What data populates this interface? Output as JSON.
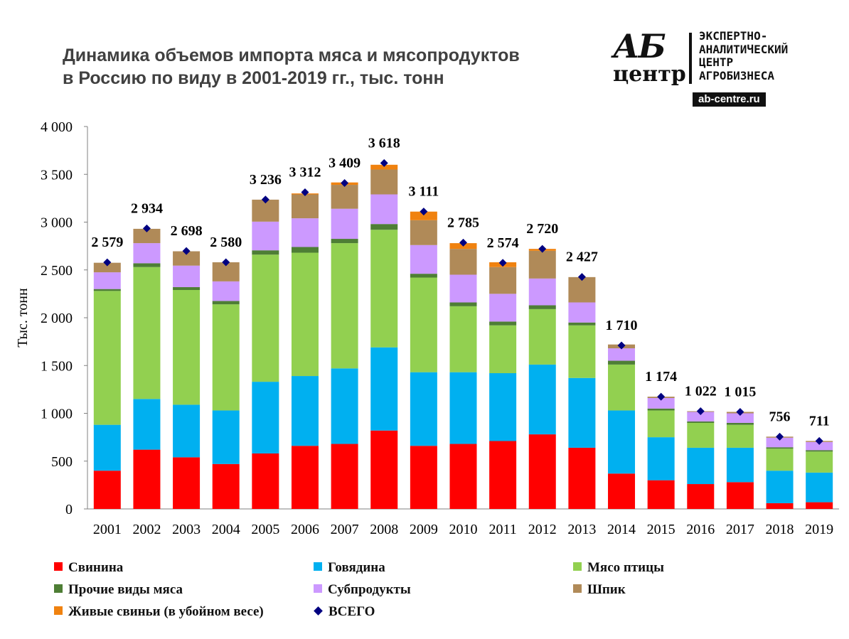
{
  "title_lines": [
    "Динамика объемов импорта мяса и мясопродуктов",
    "в Россию по виду в 2001-2019 гг., тыс. тонн"
  ],
  "logo": {
    "mark_line1": "АБ",
    "mark_line2": "центр",
    "text_lines": [
      "ЭКСПЕРТНО-",
      "АНАЛИТИЧЕСКИЙ",
      "ЦЕНТР",
      "АГРОБИЗНЕСА"
    ],
    "url": "ab-centre.ru"
  },
  "chart_data": {
    "type": "bar",
    "stacked": true,
    "ylabel": "Тыс.  тонн",
    "xlabel": "",
    "ylim": [
      0,
      4000
    ],
    "y_ticks": [
      0,
      500,
      1000,
      1500,
      2000,
      2500,
      3000,
      3500,
      4000
    ],
    "y_tick_labels": [
      "0",
      "500",
      "1 000",
      "1 500",
      "2 000",
      "2 500",
      "3 000",
      "3 500",
      "4 000"
    ],
    "categories": [
      "2001",
      "2002",
      "2003",
      "2004",
      "2005",
      "2006",
      "2007",
      "2008",
      "2009",
      "2010",
      "2011",
      "2012",
      "2013",
      "2014",
      "2015",
      "2016",
      "2017",
      "2018",
      "2019"
    ],
    "series": [
      {
        "name": "Свинина",
        "color": "#ff0000",
        "values": [
          400,
          620,
          540,
          470,
          580,
          660,
          680,
          820,
          660,
          680,
          710,
          780,
          640,
          370,
          300,
          260,
          280,
          60,
          70
        ]
      },
      {
        "name": "Говядина",
        "color": "#00b0f0",
        "values": [
          480,
          530,
          550,
          560,
          750,
          730,
          790,
          870,
          770,
          750,
          710,
          730,
          730,
          660,
          450,
          380,
          360,
          340,
          310
        ]
      },
      {
        "name": "Мясо птицы",
        "color": "#92d050",
        "values": [
          1400,
          1380,
          1200,
          1110,
          1330,
          1290,
          1310,
          1230,
          990,
          690,
          500,
          580,
          550,
          480,
          280,
          260,
          240,
          230,
          220
        ]
      },
      {
        "name": "Прочие виды мяса",
        "color": "#4e7e35",
        "values": [
          20,
          40,
          30,
          35,
          45,
          60,
          45,
          60,
          40,
          40,
          40,
          40,
          30,
          40,
          20,
          15,
          20,
          15,
          15
        ]
      },
      {
        "name": "Субпродукты",
        "color": "#cc99ff",
        "values": [
          175,
          210,
          225,
          205,
          300,
          300,
          315,
          310,
          300,
          290,
          290,
          280,
          210,
          130,
          110,
          100,
          100,
          100,
          85
        ]
      },
      {
        "name": "Шпик",
        "color": "#b08a58",
        "values": [
          100,
          150,
          150,
          200,
          230,
          250,
          250,
          260,
          260,
          270,
          280,
          290,
          265,
          40,
          14,
          7,
          15,
          11,
          11
        ]
      },
      {
        "name": "Живые свиньи (в убойном весе)",
        "color": "#f0820f",
        "values": [
          0,
          0,
          0,
          0,
          0,
          10,
          25,
          50,
          90,
          60,
          50,
          20,
          0,
          0,
          0,
          0,
          0,
          0,
          0
        ]
      }
    ],
    "totals": {
      "name": "ВСЕГО",
      "color": "#000080",
      "values": [
        2579,
        2934,
        2698,
        2580,
        3236,
        3312,
        3409,
        3618,
        3111,
        2785,
        2574,
        2720,
        2427,
        1710,
        1174,
        1022,
        1015,
        756,
        711
      ],
      "labels": [
        "2 579",
        "2 934",
        "2 698",
        "2 580",
        "3 236",
        "3 312",
        "3 409",
        "3 618",
        "3 111",
        "2 785",
        "2 574",
        "2 720",
        "2 427",
        "1 710",
        "1 174",
        "1 022",
        "1 015",
        "756",
        "711"
      ]
    },
    "grid": false,
    "legend_position": "bottom"
  },
  "legend": [
    {
      "label": "Свинина",
      "color": "#ff0000",
      "kind": "square"
    },
    {
      "label": "Говядина",
      "color": "#00b0f0",
      "kind": "square"
    },
    {
      "label": "Мясо птицы",
      "color": "#92d050",
      "kind": "square"
    },
    {
      "label": "Прочие виды мяса",
      "color": "#4e7e35",
      "kind": "square"
    },
    {
      "label": "Субпродукты",
      "color": "#cc99ff",
      "kind": "square"
    },
    {
      "label": "Шпик",
      "color": "#b08a58",
      "kind": "square"
    },
    {
      "label": "Живые свиньи (в убойном весе)",
      "color": "#f0820f",
      "kind": "square"
    },
    {
      "label": "ВСЕГО",
      "color": "#000080",
      "kind": "diamond"
    }
  ]
}
